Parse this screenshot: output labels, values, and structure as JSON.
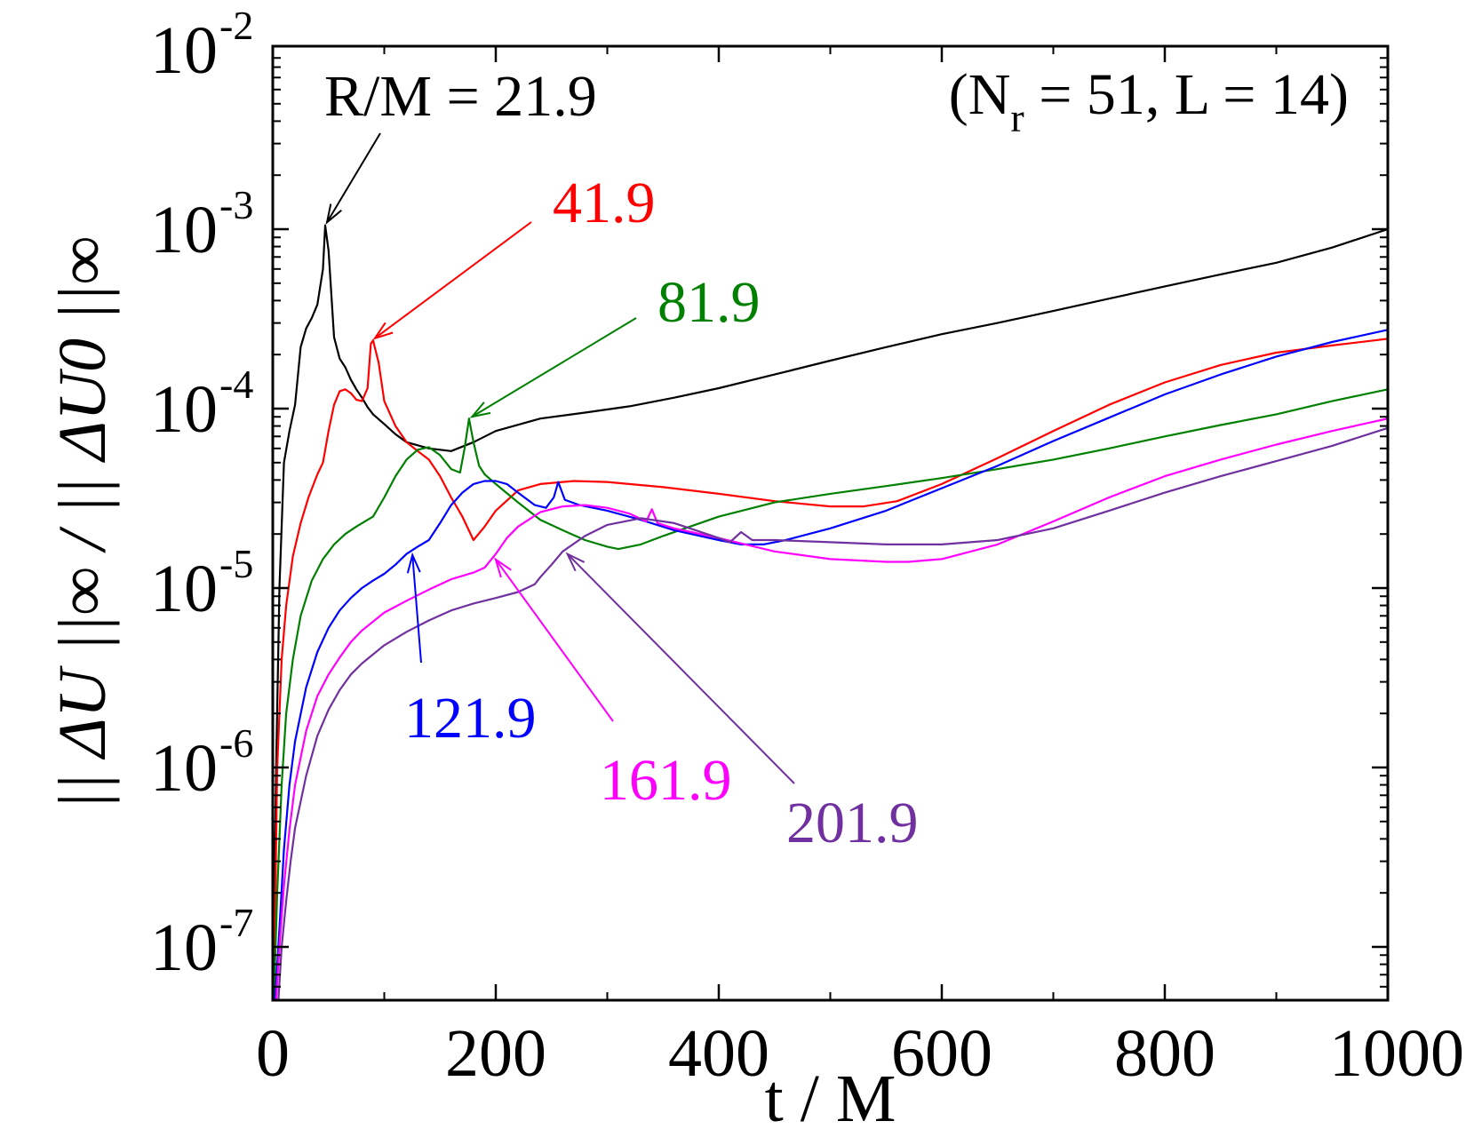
{
  "chart_data": {
    "type": "line",
    "xlabel": "t / M",
    "ylabel": "|| ΔU ||∞ / || ΔU0 ||∞",
    "xlim": [
      0,
      1000
    ],
    "ylim": [
      5e-08,
      0.01
    ],
    "yscale": "log",
    "grid": false,
    "x_ticks": [
      "0",
      "200",
      "400",
      "600",
      "800",
      "1000"
    ],
    "x_tick_values": [
      0,
      200,
      400,
      600,
      800,
      1000
    ],
    "y_ticks": [
      {
        "value": 1e-07,
        "base": "10",
        "exp": "-7"
      },
      {
        "value": 1e-06,
        "base": "10",
        "exp": "-6"
      },
      {
        "value": 1e-05,
        "base": "10",
        "exp": "-5"
      },
      {
        "value": 0.0001,
        "base": "10",
        "exp": "-4"
      },
      {
        "value": 0.001,
        "base": "10",
        "exp": "-3"
      },
      {
        "value": 0.01,
        "base": "10",
        "exp": "-2"
      }
    ],
    "annotation_params": {
      "text_pre": "(N",
      "sub": "r",
      "text_post": " = 51, L = 14)"
    },
    "series": [
      {
        "label": "R/M = 21.9",
        "color": "#000000",
        "x": [
          0,
          3,
          6,
          10,
          15,
          20,
          25,
          30,
          35,
          40,
          45,
          47,
          50,
          55,
          60,
          65,
          70,
          75,
          80,
          85,
          90,
          100,
          110,
          120,
          140,
          160,
          180,
          200,
          240,
          280,
          320,
          360,
          400,
          450,
          500,
          550,
          600,
          650,
          700,
          750,
          800,
          850,
          900,
          950,
          1000
        ],
        "y": [
          5e-08,
          1e-06,
          1e-05,
          5e-05,
          7.5e-05,
          0.000105,
          0.00022,
          0.00028,
          0.00032,
          0.00038,
          0.0006,
          0.00105,
          0.00076,
          0.00025,
          0.00019,
          0.00017,
          0.000145,
          0.000128,
          0.000115,
          0.000102,
          9.3e-05,
          8.2e-05,
          7.2e-05,
          6.5e-05,
          6e-05,
          5.8e-05,
          6.5e-05,
          7.5e-05,
          8.8e-05,
          9.5e-05,
          0.000103,
          0.000115,
          0.00013,
          0.000155,
          0.000185,
          0.00022,
          0.00026,
          0.0003,
          0.00035,
          0.00041,
          0.00048,
          0.00056,
          0.00065,
          0.00079,
          0.001
        ]
      },
      {
        "label": "41.9",
        "color": "#ff0000",
        "x": [
          1,
          4,
          8,
          12,
          18,
          25,
          32,
          40,
          45,
          50,
          55,
          60,
          65,
          70,
          75,
          80,
          85,
          88,
          90,
          95,
          100,
          110,
          120,
          130,
          140,
          150,
          160,
          170,
          180,
          190,
          200,
          220,
          240,
          270,
          300,
          350,
          400,
          450,
          500,
          530,
          560,
          600,
          650,
          700,
          750,
          800,
          850,
          900,
          950,
          1000
        ],
        "y": [
          5e-08,
          1e-06,
          4e-06,
          8e-06,
          1.5e-05,
          2.3e-05,
          3.2e-05,
          4.3e-05,
          5e-05,
          7.5e-05,
          0.000105,
          0.000125,
          0.000128,
          0.000122,
          0.000112,
          0.00011,
          0.00013,
          0.00023,
          0.00024,
          0.00018,
          0.00011,
          8e-05,
          6.5e-05,
          5.8e-05,
          5.2e-05,
          4.2e-05,
          3.2e-05,
          2.5e-05,
          1.85e-05,
          2.2e-05,
          2.7e-05,
          3.5e-05,
          3.8e-05,
          3.95e-05,
          3.9e-05,
          3.65e-05,
          3.35e-05,
          3.05e-05,
          2.85e-05,
          2.85e-05,
          3.05e-05,
          3.8e-05,
          5.3e-05,
          7.5e-05,
          0.000105,
          0.00014,
          0.000175,
          0.000205,
          0.000225,
          0.000245
        ]
      },
      {
        "label": "81.9",
        "color": "#008000",
        "x": [
          1,
          4,
          8,
          12,
          18,
          25,
          35,
          45,
          55,
          65,
          75,
          85,
          90,
          100,
          110,
          120,
          130,
          140,
          150,
          160,
          168,
          172,
          176,
          180,
          185,
          190,
          200,
          220,
          240,
          260,
          280,
          300,
          310,
          330,
          350,
          400,
          450,
          500,
          550,
          600,
          650,
          700,
          750,
          800,
          850,
          900,
          950,
          1000
        ],
        "y": [
          5e-08,
          2e-07,
          8e-07,
          2e-06,
          4e-06,
          7e-06,
          1.1e-05,
          1.45e-05,
          1.75e-05,
          2e-05,
          2.2e-05,
          2.4e-05,
          2.5e-05,
          3.2e-05,
          4.2e-05,
          5.2e-05,
          5.9e-05,
          6.1e-05,
          5.5e-05,
          4.6e-05,
          4.4e-05,
          6e-05,
          8.8e-05,
          6.5e-05,
          4.8e-05,
          4.3e-05,
          3.8e-05,
          3e-05,
          2.4e-05,
          2.1e-05,
          1.85e-05,
          1.7e-05,
          1.65e-05,
          1.75e-05,
          1.95e-05,
          2.5e-05,
          3e-05,
          3.35e-05,
          3.7e-05,
          4.1e-05,
          4.6e-05,
          5.2e-05,
          6e-05,
          7e-05,
          8.1e-05,
          9.3e-05,
          0.00011,
          0.000128
        ]
      },
      {
        "label": "121.9",
        "color": "#0000ff",
        "x": [
          2,
          5,
          10,
          15,
          20,
          30,
          40,
          50,
          60,
          70,
          80,
          90,
          100,
          110,
          120,
          130,
          140,
          150,
          160,
          170,
          180,
          190,
          200,
          210,
          220,
          235,
          245,
          252,
          256,
          262,
          275,
          300,
          330,
          360,
          400,
          420,
          440,
          460,
          500,
          550,
          600,
          650,
          700,
          750,
          800,
          850,
          900,
          950,
          1000
        ],
        "y": [
          5e-08,
          1e-07,
          3.5e-07,
          8e-07,
          1.4e-06,
          2.8e-06,
          4.4e-06,
          6e-06,
          7.5e-06,
          8.8e-06,
          1e-05,
          1.1e-05,
          1.2e-05,
          1.35e-05,
          1.55e-05,
          1.7e-05,
          1.85e-05,
          2.3e-05,
          2.9e-05,
          3.4e-05,
          3.8e-05,
          3.95e-05,
          3.95e-05,
          3.8e-05,
          3.4e-05,
          2.9e-05,
          2.8e-05,
          3.2e-05,
          3.9e-05,
          3.1e-05,
          2.9e-05,
          2.7e-05,
          2.4e-05,
          2.1e-05,
          1.85e-05,
          1.75e-05,
          1.75e-05,
          1.85e-05,
          2.15e-05,
          2.7e-05,
          3.6e-05,
          4.8e-05,
          6.6e-05,
          8.9e-05,
          0.00012,
          0.000155,
          0.000195,
          0.000235,
          0.000275
        ]
      },
      {
        "label": "161.9",
        "color": "#ff00ff",
        "x": [
          3,
          6,
          10,
          15,
          20,
          30,
          40,
          50,
          60,
          70,
          80,
          100,
          120,
          140,
          160,
          180,
          190,
          200,
          210,
          220,
          240,
          260,
          280,
          300,
          320,
          335,
          340,
          345,
          360,
          400,
          450,
          500,
          550,
          570,
          600,
          650,
          700,
          750,
          800,
          850,
          900,
          950,
          1000
        ],
        "y": [
          5e-08,
          1e-07,
          2.2e-07,
          4.5e-07,
          8e-07,
          1.6e-06,
          2.5e-06,
          3.3e-06,
          4.1e-06,
          5e-06,
          5.8e-06,
          7.3e-06,
          8.5e-06,
          9.8e-06,
          1.12e-05,
          1.22e-05,
          1.3e-05,
          1.55e-05,
          1.9e-05,
          2.2e-05,
          2.65e-05,
          2.85e-05,
          2.9e-05,
          2.8e-05,
          2.6e-05,
          2.35e-05,
          2.75e-05,
          2.3e-05,
          2.15e-05,
          1.9e-05,
          1.6e-05,
          1.45e-05,
          1.4e-05,
          1.4e-05,
          1.45e-05,
          1.75e-05,
          2.35e-05,
          3.2e-05,
          4.2e-05,
          5.2e-05,
          6.3e-05,
          7.5e-05,
          8.8e-05
        ]
      },
      {
        "label": "201.9",
        "color": "#7030a0",
        "x": [
          5,
          8,
          12,
          16,
          20,
          30,
          40,
          50,
          60,
          70,
          80,
          100,
          120,
          140,
          160,
          180,
          200,
          220,
          235,
          240,
          250,
          260,
          280,
          300,
          330,
          360,
          400,
          410,
          420,
          430,
          450,
          500,
          550,
          600,
          650,
          700,
          750,
          800,
          850,
          900,
          950,
          1000
        ],
        "y": [
          5e-08,
          1e-07,
          1.8e-07,
          3e-07,
          4.6e-07,
          9e-07,
          1.5e-06,
          2.1e-06,
          2.7e-06,
          3.3e-06,
          3.8e-06,
          4.8e-06,
          5.7e-06,
          6.6e-06,
          7.5e-06,
          8.2e-06,
          8.8e-06,
          9.5e-06,
          1.05e-05,
          1.15e-05,
          1.35e-05,
          1.6e-05,
          1.95e-05,
          2.25e-05,
          2.45e-05,
          2.3e-05,
          1.9e-05,
          1.8e-05,
          2.05e-05,
          1.85e-05,
          1.85e-05,
          1.8e-05,
          1.75e-05,
          1.75e-05,
          1.85e-05,
          2.15e-05,
          2.7e-05,
          3.4e-05,
          4.2e-05,
          5.1e-05,
          6.2e-05,
          7.8e-05
        ]
      }
    ],
    "annotations": [
      {
        "text": "R/M = 21.9",
        "color": "#000000",
        "tip_x": 47,
        "tip_y": 0.00105
      },
      {
        "text": "41.9",
        "color": "#ff0000",
        "tip_x": 89,
        "tip_y": 0.00024
      },
      {
        "text": "81.9",
        "color": "#008000",
        "tip_x": 176,
        "tip_y": 8.8e-05
      },
      {
        "text": "121.9",
        "color": "#0000ff",
        "tip_x": 125,
        "tip_y": 1.6e-05
      },
      {
        "text": "161.9",
        "color": "#ff00ff",
        "tip_x": 198,
        "tip_y": 1.5e-05
      },
      {
        "text": "201.9",
        "color": "#7030a0",
        "tip_x": 262,
        "tip_y": 1.6e-05
      }
    ]
  }
}
